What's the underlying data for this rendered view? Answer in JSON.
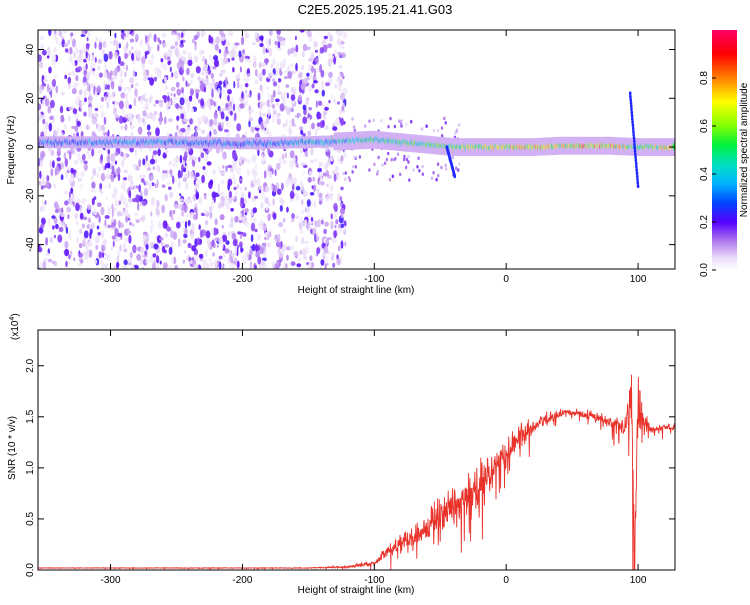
{
  "title": "C2E5.2025.195.21.41.G03",
  "colorbar": {
    "label": "Normalized spectral amplitude",
    "ticks": [
      "0.0",
      "0.2",
      "0.4",
      "0.6",
      "0.8"
    ],
    "tick_values": [
      0.0,
      0.2,
      0.4,
      0.6,
      0.8
    ],
    "range": [
      0,
      1
    ]
  },
  "chart_data": [
    {
      "type": "heatmap",
      "xlabel": "Height of straight line (km)",
      "ylabel": "Frequency (Hz)",
      "xlim": [
        -355,
        128
      ],
      "ylim": [
        -50,
        48
      ],
      "x_ticks": [
        -300,
        -200,
        -100,
        0,
        100
      ],
      "y_ticks": [
        -40,
        -20,
        0,
        20,
        40
      ],
      "x_tick_labels": [
        "-300",
        "-200",
        "-100",
        "0",
        "100"
      ],
      "y_tick_labels": [
        "-40",
        "-20",
        "0",
        "20",
        "40"
      ],
      "band": {
        "x": [
          -355,
          -300,
          -250,
          -200,
          -150,
          -120,
          -100,
          -80,
          -60,
          -40,
          -20,
          0,
          20,
          40,
          60,
          80,
          100,
          128
        ],
        "center_hz": [
          2,
          2,
          2,
          1.5,
          2,
          2.5,
          3,
          2,
          1,
          0,
          0,
          0,
          0,
          0.5,
          0.5,
          0.5,
          0,
          0
        ],
        "amplitude": [
          0.35,
          0.4,
          0.4,
          0.35,
          0.45,
          0.5,
          0.55,
          0.55,
          0.6,
          0.65,
          0.75,
          0.8,
          0.8,
          0.8,
          0.85,
          0.9,
          0.6,
          0.85
        ]
      }
    },
    {
      "type": "line",
      "xlabel": "Height of straight line (km)",
      "ylabel": "SNR (10 * v/v)",
      "y_scale_note": "(x10",
      "y_scale_exp": "4",
      "y_scale_close": ")",
      "xlim": [
        -355,
        128
      ],
      "ylim": [
        0,
        2.35
      ],
      "x_ticks": [
        -300,
        -200,
        -100,
        0,
        100
      ],
      "y_ticks": [
        0.0,
        0.5,
        1.0,
        1.5,
        2.0
      ],
      "x_tick_labels": [
        "-300",
        "-200",
        "-100",
        "0",
        "100"
      ],
      "y_tick_labels": [
        "0.0",
        "0.5",
        "1.0",
        "1.5",
        "2.0"
      ],
      "series": [
        {
          "color": "#e8322a",
          "x": [
            -355,
            -300,
            -250,
            -200,
            -150,
            -120,
            -100,
            -90,
            -80,
            -70,
            -60,
            -50,
            -40,
            -30,
            -20,
            -10,
            0,
            10,
            20,
            30,
            40,
            50,
            60,
            70,
            80,
            90,
            95,
            97,
            100,
            103,
            110,
            120,
            128
          ],
          "y": [
            0.02,
            0.02,
            0.02,
            0.02,
            0.02,
            0.03,
            0.07,
            0.18,
            0.28,
            0.32,
            0.42,
            0.55,
            0.62,
            0.7,
            0.85,
            0.98,
            1.15,
            1.3,
            1.4,
            1.47,
            1.53,
            1.55,
            1.52,
            1.5,
            1.43,
            1.4,
            1.7,
            0.15,
            1.7,
            1.45,
            1.38,
            1.4,
            1.4
          ],
          "noise": [
            0.003,
            0.003,
            0.003,
            0.003,
            0.004,
            0.01,
            0.03,
            0.06,
            0.1,
            0.12,
            0.15,
            0.2,
            0.25,
            0.25,
            0.25,
            0.22,
            0.18,
            0.12,
            0.1,
            0.08,
            0.05,
            0.04,
            0.05,
            0.06,
            0.08,
            0.1,
            0.5,
            0.6,
            0.5,
            0.15,
            0.04,
            0.04,
            0.04
          ]
        }
      ]
    }
  ]
}
